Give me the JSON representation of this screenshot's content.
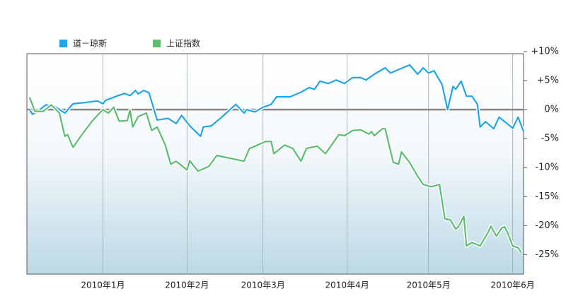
{
  "chart_data": {
    "type": "line",
    "x": [
      -27,
      -26,
      -24,
      -21,
      -18,
      -14,
      -11,
      -7,
      -2,
      0,
      1,
      5,
      8,
      10,
      12,
      13,
      15,
      17,
      20,
      24,
      27,
      29,
      32,
      36,
      37,
      40,
      44,
      49,
      52,
      53,
      56,
      59,
      62,
      64,
      69,
      73,
      76,
      78,
      80,
      83,
      86,
      89,
      92,
      95,
      97,
      100,
      104,
      106,
      110,
      113,
      116,
      118,
      120,
      122,
      125,
      127,
      129,
      130,
      132,
      134,
      136,
      138,
      139,
      141,
      144,
      146,
      151,
      153,
      155
    ],
    "series": [
      {
        "name": "道－琼斯",
        "color": "#1ea6e8",
        "x": [
          -27,
          -26,
          -24,
          -21,
          -18,
          -14,
          -11,
          -7,
          -2,
          0,
          1,
          5,
          8,
          10,
          12,
          13,
          15,
          17,
          20,
          24,
          27,
          29,
          32,
          36,
          37,
          40,
          44,
          49,
          52,
          53,
          56,
          59,
          62,
          64,
          69,
          73,
          76,
          78,
          80,
          83,
          86,
          89,
          92,
          95,
          97,
          100,
          104,
          106,
          110,
          113,
          116,
          118,
          120,
          122,
          125,
          127,
          129,
          130,
          132,
          134,
          136,
          138,
          139,
          141,
          144,
          146,
          151,
          153,
          155
        ],
        "values": [
          0,
          -0.8,
          -0.3,
          0.8,
          0.6,
          -0.6,
          1,
          1.2,
          1.5,
          1,
          1.6,
          2.3,
          2.8,
          2.4,
          3.3,
          2.7,
          3.3,
          2.9,
          -1.8,
          -1.5,
          -2.4,
          -1,
          -2.8,
          -4.6,
          -3,
          -2.8,
          -1.2,
          0.9,
          -0.6,
          0,
          -0.4,
          0.4,
          0.9,
          2.2,
          2.2,
          3,
          3.8,
          3.5,
          4.9,
          4.5,
          5.1,
          4.5,
          5.5,
          5.5,
          5.1,
          6.1,
          7.2,
          6.3,
          7.1,
          7.7,
          6.1,
          7.2,
          6.3,
          6.7,
          4.3,
          0,
          4,
          3.5,
          4.9,
          2.3,
          2.3,
          0.9,
          -3,
          -2.1,
          -3.3,
          -1.3,
          -3.2,
          -1.3,
          -3.8
        ]
      },
      {
        "name": "上证指数",
        "color": "#5dbb72",
        "x": [
          -27,
          -25,
          -22,
          -19,
          -16,
          -14,
          -13,
          -11,
          -8,
          -4,
          0,
          2,
          4,
          6,
          9,
          10,
          11,
          13,
          16,
          18,
          20,
          23,
          25,
          27,
          31,
          32,
          35,
          39,
          42,
          48,
          52,
          54,
          57,
          60,
          62,
          63,
          67,
          70,
          73,
          75,
          79,
          82,
          87,
          89,
          92,
          95,
          98,
          99,
          100,
          103,
          104,
          107,
          109,
          110,
          113,
          116,
          118,
          121,
          124,
          126,
          128,
          130,
          131,
          133,
          134,
          136,
          139,
          142,
          143,
          145,
          147,
          148,
          149,
          151,
          153,
          154
        ],
        "values": [
          2.1,
          -0.3,
          -0.3,
          0.8,
          -0.6,
          -4.6,
          -4.3,
          -6.5,
          -4.5,
          -2,
          0,
          -0.6,
          0.4,
          -2,
          -1.9,
          -0.1,
          -3,
          -1.2,
          -0.6,
          -3.6,
          -3,
          -6.1,
          -9.4,
          -8.9,
          -10.4,
          -8.8,
          -10.6,
          -9.8,
          -7.9,
          -8.5,
          -8.9,
          -6.7,
          -6.1,
          -5.5,
          -5.5,
          -7.6,
          -6.1,
          -6.7,
          -8.9,
          -6.7,
          -6.3,
          -7.6,
          -4.3,
          -4.5,
          -3.6,
          -3.5,
          -4.2,
          -3.8,
          -4.5,
          -3.3,
          -3.3,
          -9.1,
          -9.4,
          -7.3,
          -9.1,
          -11.5,
          -12.9,
          -13.3,
          -12.9,
          -18.8,
          -19,
          -20.6,
          -20.2,
          -18.4,
          -23.5,
          -22.9,
          -23.5,
          -21.1,
          -20.1,
          -21.8,
          -20.4,
          -20.2,
          -21.1,
          -23.5,
          -23.8,
          -24.6
        ]
      }
    ],
    "xlim": [
      -28,
      155
    ],
    "xticks": [
      {
        "value": 0,
        "label": "2010年1月"
      },
      {
        "value": 31,
        "label": "2010年2月"
      },
      {
        "value": 59,
        "label": "2010年3月"
      },
      {
        "value": 90,
        "label": "2010年4月"
      },
      {
        "value": 120,
        "label": "2010年5月"
      },
      {
        "value": 151,
        "label": "2010年6月"
      }
    ],
    "ylim": [
      -28,
      10
    ],
    "yticks": [
      {
        "value": 10,
        "label": "+10%"
      },
      {
        "value": 5,
        "label": "+5%"
      },
      {
        "value": 0,
        "label": "0%"
      },
      {
        "value": -5,
        "label": "-5%"
      },
      {
        "value": -10,
        "label": "-10%"
      },
      {
        "value": -15,
        "label": "-15%"
      },
      {
        "value": -20,
        "label": "-20%"
      },
      {
        "value": -25,
        "label": "-25%"
      }
    ],
    "legend": "top-left",
    "grid": true
  }
}
